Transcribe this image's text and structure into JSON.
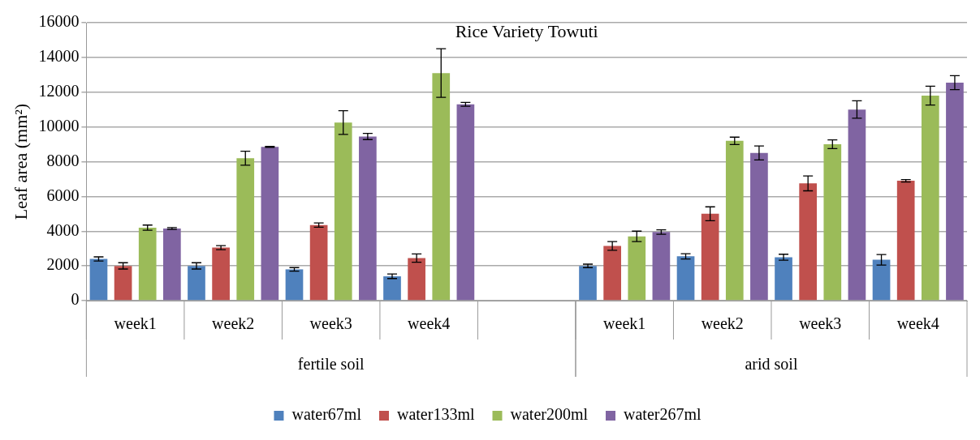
{
  "chart_data": {
    "type": "bar",
    "title": "Rice Variety Towuti",
    "ylabel": "Leaf area (mm²)",
    "categories": [
      "week1",
      "week2",
      "week3",
      "week4",
      null,
      "week1",
      "week2",
      "week3",
      "week4"
    ],
    "annotations": [
      "fertile soil",
      "arid soil"
    ],
    "series": [
      {
        "name": "water67ml",
        "color": "#4f81bd",
        "values": [
          2400,
          2000,
          1800,
          1400,
          null,
          2000,
          2550,
          2500,
          2350
        ],
        "errors": [
          120,
          180,
          100,
          130,
          null,
          100,
          150,
          170,
          300
        ]
      },
      {
        "name": "water133ml",
        "color": "#c0504d",
        "values": [
          2000,
          3050,
          4350,
          2450,
          null,
          3150,
          5000,
          6750,
          6900
        ],
        "errors": [
          180,
          120,
          120,
          240,
          null,
          250,
          400,
          430,
          70
        ]
      },
      {
        "name": "water200ml",
        "color": "#9bbb59",
        "values": [
          4200,
          8200,
          10250,
          13100,
          null,
          3700,
          9200,
          9000,
          11800
        ],
        "errors": [
          150,
          400,
          680,
          1400,
          null,
          300,
          210,
          250,
          540
        ]
      },
      {
        "name": "water267ml",
        "color": "#8064a2",
        "values": [
          4150,
          8850,
          9450,
          11300,
          null,
          3950,
          8500,
          11000,
          12550
        ],
        "errors": [
          50,
          30,
          180,
          110,
          null,
          130,
          400,
          500,
          400
        ]
      }
    ],
    "ylim": [
      0,
      16000
    ],
    "yticks": [
      0,
      2000,
      4000,
      6000,
      8000,
      10000,
      12000,
      14000,
      16000
    ],
    "grid": "y",
    "legend": "bottom"
  }
}
